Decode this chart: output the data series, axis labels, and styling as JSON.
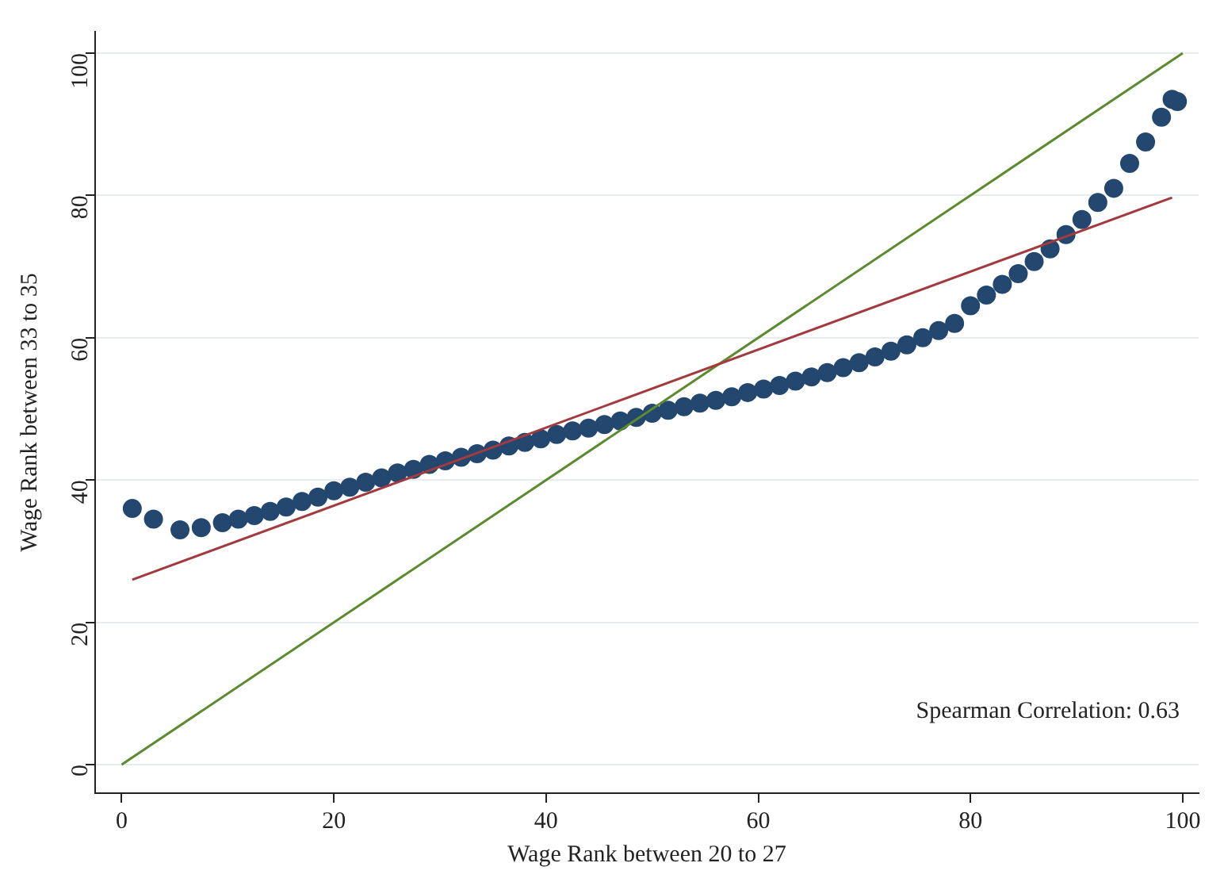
{
  "chart_data": {
    "type": "scatter",
    "xlabel": "Wage Rank between 20 to 27",
    "ylabel": "Wage Rank between 33 to 35",
    "xlim": [
      -2.5,
      101.5
    ],
    "ylim": [
      -4,
      103
    ],
    "xticks": [
      0,
      20,
      40,
      60,
      80,
      100
    ],
    "yticks": [
      0,
      20,
      40,
      60,
      80,
      100
    ],
    "grid": "y",
    "legend": false,
    "annotations": [
      "Spearman Correlation: 0.63"
    ],
    "series": [
      {
        "type": "scatter",
        "marker": "circle",
        "color": "#23476f",
        "x": [
          1,
          3,
          5.5,
          7.5,
          9.5,
          11,
          12.5,
          14,
          15.5,
          17,
          18.5,
          20,
          21.5,
          23,
          24.5,
          26,
          27.5,
          29,
          30.5,
          32,
          33.5,
          35,
          36.5,
          38,
          39.5,
          41,
          42.5,
          44,
          45.5,
          47,
          48.5,
          50,
          51.5,
          53,
          54.5,
          56,
          57.5,
          59,
          60.5,
          62,
          63.5,
          65,
          66.5,
          68,
          69.5,
          71,
          72.5,
          74,
          75.5,
          77,
          78.5,
          80,
          81.5,
          83,
          84.5,
          86,
          87.5,
          89,
          90.5,
          92,
          93.5,
          95,
          96.5,
          98,
          99,
          99.5
        ],
        "values": [
          36,
          34.5,
          33,
          33.3,
          34,
          34.5,
          35,
          35.6,
          36.2,
          37,
          37.6,
          38.5,
          39,
          39.7,
          40.3,
          41,
          41.5,
          42.2,
          42.7,
          43.2,
          43.7,
          44.2,
          44.8,
          45.3,
          45.8,
          46.4,
          46.9,
          47.3,
          47.8,
          48.3,
          48.8,
          49.4,
          49.8,
          50.3,
          50.8,
          51.2,
          51.7,
          52.3,
          52.8,
          53.3,
          53.9,
          54.5,
          55.1,
          55.8,
          56.5,
          57.3,
          58.1,
          59,
          60,
          61,
          62,
          64.5,
          66,
          67.5,
          69,
          70.7,
          72.5,
          74.5,
          76.6,
          79,
          81,
          84.5,
          87.5,
          91,
          93.5,
          93.2
        ]
      },
      {
        "type": "line",
        "marker": "none",
        "color": "#a23a3e",
        "x": [
          1,
          99
        ],
        "values": [
          26,
          79.7
        ]
      },
      {
        "type": "line",
        "marker": "none",
        "color": "#5b8a2f",
        "x": [
          0,
          100
        ],
        "values": [
          0,
          100
        ]
      }
    ]
  }
}
